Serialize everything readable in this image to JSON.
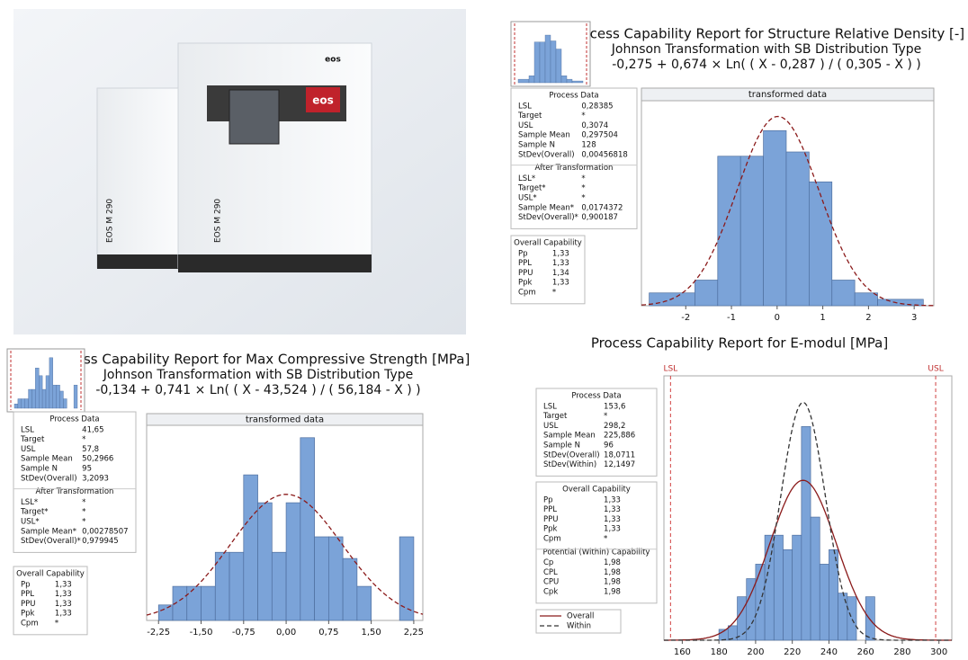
{
  "photo": {
    "labels": [
      "EOS M 290",
      "EOS M 290"
    ],
    "logos": [
      "eos",
      "eos"
    ]
  },
  "chart_data": [
    {
      "type": "histogram",
      "title": "Process Capability Report for Structure Relative Density [-]",
      "subtitle": "Johnson Transformation with SB Distribution Type",
      "formula": "-0,275 + 0,674 × Ln( ( X - 0,287 ) / ( 0,305 - X ) )",
      "panel_title": "transformed data",
      "color": "#7ba3d8",
      "bins": [
        -2.8,
        -1.8,
        -1.3,
        -0.8,
        -0.3,
        0.2,
        0.7,
        1.2,
        1.7,
        2.2,
        3.2
      ],
      "values": [
        0.03,
        0.06,
        0.35,
        0.35,
        0.41,
        0.36,
        0.29,
        0.06,
        0.03,
        0.015
      ],
      "xlim": [
        -2.97,
        3.43
      ],
      "ylim": [
        0,
        0.48
      ],
      "xticks": [
        -2,
        -1,
        0,
        1,
        2,
        3
      ],
      "series": [
        {
          "color": "#8b1a1a",
          "mean": 0.0174372,
          "sd": 0.900187,
          "dash": true
        }
      ],
      "tables": [
        {
          "title": "Process Data",
          "rows": [
            [
              "LSL",
              "0,28385"
            ],
            [
              "Target",
              "*"
            ],
            [
              "USL",
              "0,3074"
            ],
            [
              "Sample Mean",
              "0,297504"
            ],
            [
              "Sample N",
              "128"
            ],
            [
              "StDev(Overall)",
              "0,00456818"
            ]
          ]
        },
        {
          "title": "After Transformation",
          "rows": [
            [
              "LSL*",
              "*"
            ],
            [
              "Target*",
              "*"
            ],
            [
              "USL*",
              "*"
            ],
            [
              "Sample Mean*",
              "0,0174372"
            ],
            [
              "StDev(Overall)*",
              "0,900187"
            ]
          ]
        },
        {
          "title": "Overall Capability",
          "rows": [
            [
              "Pp",
              "1,33"
            ],
            [
              "PPL",
              "1,33"
            ],
            [
              "PPU",
              "1,34"
            ],
            [
              "Ppk",
              "1,33"
            ],
            [
              "Cpm",
              "*"
            ]
          ]
        }
      ]
    },
    {
      "type": "histogram",
      "title": "Process Capability Report for Max Compressive Strength [MPa]",
      "subtitle": "Johnson Transformation with SB Distribution Type",
      "formula": "-0,134 + 0,741 × Ln( ( X - 43,524 ) / ( 56,184 - X ) )",
      "panel_title": "transformed data",
      "color": "#7ba3d8",
      "bins": [
        -2.25,
        -2.0,
        -1.75,
        -1.5,
        -1.25,
        -1.0,
        -0.75,
        -0.5,
        -0.25,
        0,
        0.25,
        0.5,
        0.75,
        1.0,
        1.25,
        1.5,
        1.75,
        2.0,
        2.25
      ],
      "values": [
        0.05,
        0.11,
        0.11,
        0.11,
        0.22,
        0.22,
        0.47,
        0.38,
        0.22,
        0.38,
        0.59,
        0.27,
        0.27,
        0.2,
        0.11,
        0,
        0,
        0.27
      ],
      "xlim": [
        -2.46,
        2.41
      ],
      "ylim": [
        0,
        0.63
      ],
      "xticks": [
        {
          "value": -2.25,
          "label": "-2,25"
        },
        {
          "value": -1.5,
          "label": "-1,50"
        },
        {
          "value": -0.75,
          "label": "-0,75"
        },
        {
          "value": 0,
          "label": "0,00"
        },
        {
          "value": 0.75,
          "label": "0,75"
        },
        {
          "value": 1.5,
          "label": "1,50"
        },
        {
          "value": 2.25,
          "label": "2,25"
        }
      ],
      "series": [
        {
          "color": "#8b1a1a",
          "mean": 0.00278507,
          "sd": 0.979945,
          "dash": true
        }
      ],
      "tables": [
        {
          "title": "Process Data",
          "rows": [
            [
              "LSL",
              "41,65"
            ],
            [
              "Target",
              "*"
            ],
            [
              "USL",
              "57,8"
            ],
            [
              "Sample Mean",
              "50,2966"
            ],
            [
              "Sample N",
              "95"
            ],
            [
              "StDev(Overall)",
              "3,2093"
            ]
          ]
        },
        {
          "title": "After Transformation",
          "rows": [
            [
              "LSL*",
              "*"
            ],
            [
              "Target*",
              "*"
            ],
            [
              "USL*",
              "*"
            ],
            [
              "Sample Mean*",
              "0,00278507"
            ],
            [
              "StDev(Overall)*",
              "0,979945"
            ]
          ]
        },
        {
          "title": "Overall Capability",
          "rows": [
            [
              "Pp",
              "1,33"
            ],
            [
              "PPL",
              "1,33"
            ],
            [
              "PPU",
              "1,33"
            ],
            [
              "Ppk",
              "1,33"
            ],
            [
              "Cpm",
              "*"
            ]
          ]
        }
      ]
    },
    {
      "type": "histogram",
      "title": "Process Capability Report for E-modul [MPa]",
      "color": "#7ba3d8",
      "bins": [
        180,
        185,
        190,
        195,
        200,
        205,
        210,
        215,
        220,
        225,
        230,
        235,
        240,
        245,
        250,
        255,
        260,
        265
      ],
      "values": [
        0.0015,
        0.002,
        0.006,
        0.0085,
        0.0105,
        0.0145,
        0.0145,
        0.0125,
        0.0145,
        0.0295,
        0.017,
        0.0105,
        0.0125,
        0.0065,
        0.006,
        0,
        0.006
      ],
      "xlim": [
        150,
        307
      ],
      "ylim": [
        0,
        0.0365
      ],
      "xticks": [
        160,
        180,
        200,
        220,
        240,
        260,
        280,
        300
      ],
      "spec_lines": [
        {
          "label": "LSL",
          "value": 153.6
        },
        {
          "label": "USL",
          "value": 298.2
        }
      ],
      "series": [
        {
          "name": "Overall",
          "color": "#8b1a1a",
          "mean": 225.886,
          "sd": 18.0711,
          "dash": false
        },
        {
          "name": "Within",
          "color": "#333333",
          "mean": 225.886,
          "sd": 12.1497,
          "dash": true
        }
      ],
      "tables": [
        {
          "title": "Process Data",
          "rows": [
            [
              "LSL",
              "153,6"
            ],
            [
              "Target",
              "*"
            ],
            [
              "USL",
              "298,2"
            ],
            [
              "Sample Mean",
              "225,886"
            ],
            [
              "Sample N",
              "96"
            ],
            [
              "StDev(Overall)",
              "18,0711"
            ],
            [
              "StDev(Within)",
              "12,1497"
            ]
          ]
        },
        {
          "title": "Overall Capability",
          "rows": [
            [
              "Pp",
              "1,33"
            ],
            [
              "PPL",
              "1,33"
            ],
            [
              "PPU",
              "1,33"
            ],
            [
              "Ppk",
              "1,33"
            ],
            [
              "Cpm",
              "*"
            ]
          ]
        },
        {
          "title": "Potential (Within) Capability",
          "rows": [
            [
              "Cp",
              "1,98"
            ],
            [
              "CPL",
              "1,98"
            ],
            [
              "CPU",
              "1,98"
            ],
            [
              "Cpk",
              "1,98"
            ]
          ]
        }
      ]
    }
  ]
}
